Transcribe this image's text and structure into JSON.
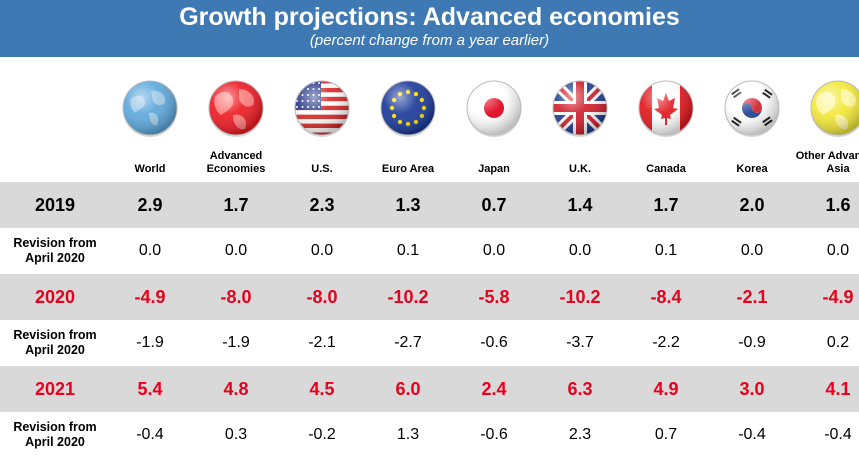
{
  "header": {
    "title": "Growth projections:  Advanced economies",
    "subtitle": "(percent change from a year earlier)"
  },
  "colors": {
    "header_bg": "#3f79b3",
    "shaded_row": "#d9d9d9",
    "negative_year_text": "#e8001c"
  },
  "columns": [
    {
      "label": "World",
      "icon": "globe-icon"
    },
    {
      "label": "Advanced Economies",
      "icon": "red-globe-icon"
    },
    {
      "label": "U.S.",
      "icon": "us-flag-icon"
    },
    {
      "label": "Euro Area",
      "icon": "eu-flag-icon"
    },
    {
      "label": "Japan",
      "icon": "japan-flag-icon"
    },
    {
      "label": "U.K.",
      "icon": "uk-flag-icon"
    },
    {
      "label": "Canada",
      "icon": "canada-flag-icon"
    },
    {
      "label": "Korea",
      "icon": "korea-flag-icon"
    },
    {
      "label": "Other Advanced Asia",
      "icon": "yellow-globe-icon"
    }
  ],
  "rows": [
    {
      "label": "2019",
      "type": "year",
      "values": [
        "2.9",
        "1.7",
        "2.3",
        "1.3",
        "0.7",
        "1.4",
        "1.7",
        "2.0",
        "1.6"
      ]
    },
    {
      "label": "Revision from April 2020",
      "type": "revision",
      "values": [
        "0.0",
        "0.0",
        "0.0",
        "0.1",
        "0.0",
        "0.0",
        "0.1",
        "0.0",
        "0.0"
      ]
    },
    {
      "label": "2020",
      "type": "year-red",
      "values": [
        "-4.9",
        "-8.0",
        "-8.0",
        "-10.2",
        "-5.8",
        "-10.2",
        "-8.4",
        "-2.1",
        "-4.9"
      ]
    },
    {
      "label": "Revision from April 2020",
      "type": "revision",
      "values": [
        "-1.9",
        "-1.9",
        "-2.1",
        "-2.7",
        "-0.6",
        "-3.7",
        "-2.2",
        "-0.9",
        "0.2"
      ]
    },
    {
      "label": "2021",
      "type": "year-red",
      "values": [
        "5.4",
        "4.8",
        "4.5",
        "6.0",
        "2.4",
        "6.3",
        "4.9",
        "3.0",
        "4.1"
      ]
    },
    {
      "label": "Revision from April 2020",
      "type": "revision",
      "values": [
        "-0.4",
        "0.3",
        "-0.2",
        "1.3",
        "-0.6",
        "2.3",
        "0.7",
        "-0.4",
        "-0.4"
      ]
    }
  ],
  "chart_data": {
    "type": "table",
    "title": "Growth projections:  Advanced economies",
    "subtitle": "(percent change from a year earlier)",
    "columns": [
      "World",
      "Advanced Economies",
      "U.S.",
      "Euro Area",
      "Japan",
      "U.K.",
      "Canada",
      "Korea",
      "Other Advanced Asia"
    ],
    "series": [
      {
        "name": "2019",
        "values": [
          2.9,
          1.7,
          2.3,
          1.3,
          0.7,
          1.4,
          1.7,
          2.0,
          1.6
        ]
      },
      {
        "name": "Revision from April 2020 (2019)",
        "values": [
          0.0,
          0.0,
          0.0,
          0.1,
          0.0,
          0.0,
          0.1,
          0.0,
          0.0
        ]
      },
      {
        "name": "2020",
        "values": [
          -4.9,
          -8.0,
          -8.0,
          -10.2,
          -5.8,
          -10.2,
          -8.4,
          -2.1,
          -4.9
        ]
      },
      {
        "name": "Revision from April 2020 (2020)",
        "values": [
          -1.9,
          -1.9,
          -2.1,
          -2.7,
          -0.6,
          -3.7,
          -2.2,
          -0.9,
          0.2
        ]
      },
      {
        "name": "2021",
        "values": [
          5.4,
          4.8,
          4.5,
          6.0,
          2.4,
          6.3,
          4.9,
          3.0,
          4.1
        ]
      },
      {
        "name": "Revision from April 2020 (2021)",
        "values": [
          -0.4,
          0.3,
          -0.2,
          1.3,
          -0.6,
          2.3,
          0.7,
          -0.4,
          -0.4
        ]
      }
    ]
  }
}
